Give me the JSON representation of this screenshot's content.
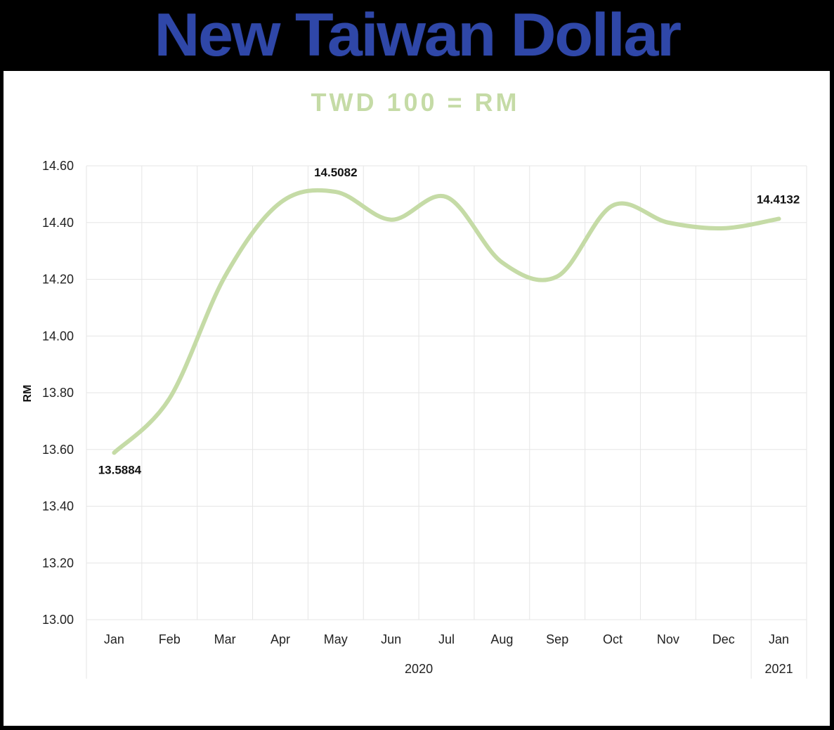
{
  "banner": {
    "title": "New Taiwan Dollar"
  },
  "colors": {
    "banner_text": "#2f47a8",
    "line": "#c5dba6",
    "title": "#c5dba6"
  },
  "chart_data": {
    "type": "line",
    "title": "TWD 100 = RM",
    "xlabel": "",
    "ylabel": "RM",
    "ylim": [
      13.0,
      14.6
    ],
    "yticks": [
      "13.00",
      "13.20",
      "13.40",
      "13.60",
      "13.80",
      "14.00",
      "14.20",
      "14.40",
      "14.60"
    ],
    "grid": true,
    "legend": "none",
    "categories": [
      "Jan",
      "Feb",
      "Mar",
      "Apr",
      "May",
      "Jun",
      "Jul",
      "Aug",
      "Sep",
      "Oct",
      "Nov",
      "Dec",
      "Jan"
    ],
    "year_groups": [
      {
        "label": "2020",
        "from": 0,
        "to": 11
      },
      {
        "label": "2021",
        "from": 12,
        "to": 12
      }
    ],
    "series": [
      {
        "values": [
          13.5884,
          13.78,
          14.21,
          14.47,
          14.5082,
          14.41,
          14.49,
          14.26,
          14.21,
          14.46,
          14.4,
          14.38,
          14.4132
        ]
      }
    ],
    "data_labels": [
      {
        "index": 0,
        "text": "13.5884"
      },
      {
        "index": 4,
        "text": "14.5082"
      },
      {
        "index": 12,
        "text": "14.4132"
      }
    ]
  }
}
